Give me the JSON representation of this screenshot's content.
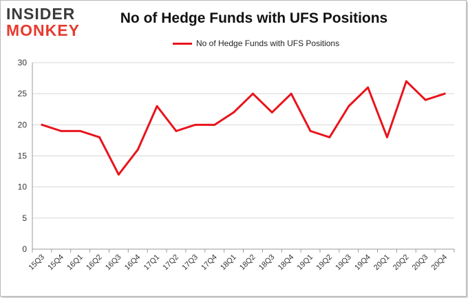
{
  "brand": {
    "line1": "INSIDER",
    "line2": "MONKEY"
  },
  "chart_data": {
    "type": "line",
    "title": "No of Hedge Funds with UFS Positions",
    "xlabel": "",
    "ylabel": "",
    "categories": [
      "15Q3",
      "15Q4",
      "16Q1",
      "16Q2",
      "16Q3",
      "16Q4",
      "17Q1",
      "17Q2",
      "17Q3",
      "17Q4",
      "18Q1",
      "18Q2",
      "18Q3",
      "18Q4",
      "19Q1",
      "19Q2",
      "19Q3",
      "19Q4",
      "20Q1",
      "20Q2",
      "20Q3",
      "20Q4"
    ],
    "series": [
      {
        "name": "No of Hedge Funds with UFS Positions",
        "values": [
          20,
          19,
          19,
          18,
          12,
          16,
          23,
          19,
          20,
          20,
          22,
          25,
          22,
          25,
          19,
          18,
          23,
          26,
          18,
          27,
          24,
          25
        ],
        "color": "#e8141c"
      }
    ],
    "ylim": [
      0,
      30
    ],
    "yticks": [
      0,
      5,
      10,
      15,
      20,
      25,
      30
    ],
    "grid": true,
    "legend_position": "top-center"
  }
}
